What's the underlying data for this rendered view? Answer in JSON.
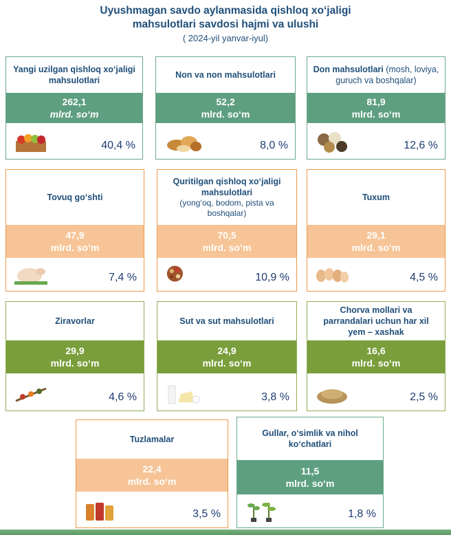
{
  "header": {
    "title_line1": "Uyushmagan savdo aylanmasida qishloq xo‘jaligi",
    "title_line2": "mahsulotlari savdosi hajmi va ulushi",
    "subtitle": "( 2024-yil yanvar-iyul)"
  },
  "unit": "mlrd. so‘m",
  "colors": {
    "green": "#5e9f80",
    "orange": "#f6c496",
    "olive": "#7a9e3b",
    "text": "#1f4e79"
  },
  "cards": [
    {
      "name": "Yangi uzilgan qishloq xo‘jaligi mahsulotlari",
      "name_extra": "",
      "value": "262,1",
      "share": "40,4 %",
      "icon": "fruit-crate-icon"
    },
    {
      "name": "Non va non mahsulotlari",
      "name_extra": "",
      "value": "52,2",
      "share": "8,0 %",
      "icon": "bread-icon"
    },
    {
      "name": "Don mahsulotlari",
      "name_extra": "(mosh, loviya, guruch va boshqalar)",
      "value": "81,9",
      "share": "12,6 %",
      "icon": "grain-bowls-icon"
    },
    {
      "name": "Tovuq go‘shti",
      "name_extra": "",
      "value": "47,9",
      "share": "7,4 %",
      "icon": "chicken-icon"
    },
    {
      "name": "Quritilgan qishloq xo‘jaligi mahsulotlari",
      "name_extra": "(yong‘oq, bodom, pista va boshqalar)",
      "value": "70,5",
      "share": "10,9 %",
      "icon": "dried-fruits-icon"
    },
    {
      "name": "Tuxum",
      "name_extra": "",
      "value": "29,1",
      "share": "4,5 %",
      "icon": "eggs-icon"
    },
    {
      "name": "Ziravorlar",
      "name_extra": "",
      "value": "29,9",
      "share": "4,6 %",
      "icon": "spices-icon"
    },
    {
      "name": "Sut va sut mahsulotlari",
      "name_extra": "",
      "value": "24,9",
      "share": "3,8 %",
      "icon": "dairy-icon"
    },
    {
      "name": "Chorva mollari va parrandalari uchun har xil yem – xashak",
      "name_extra": "",
      "value": "16,6",
      "share": "2,5 %",
      "icon": "feed-grain-icon"
    },
    {
      "name": "Tuzlamalar",
      "name_extra": "",
      "value": "22,4",
      "share": "3,5 %",
      "icon": "pickles-icon"
    },
    {
      "name": "Gullar, o‘simlik va nihol ko‘chatlari",
      "name_extra": "",
      "value": "11,5",
      "share": "1,8 %",
      "icon": "seedlings-icon"
    }
  ]
}
